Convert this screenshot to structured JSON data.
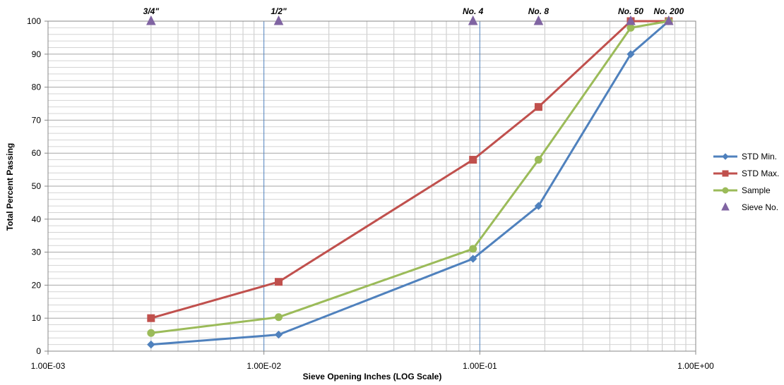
{
  "chart_data": {
    "type": "line",
    "title": "",
    "xlabel": "Sieve Opening Inches (LOG Scale)",
    "ylabel": "Total Percent Passing",
    "x_scale": "log",
    "xlim": [
      0.001,
      1
    ],
    "ylim": [
      0,
      100
    ],
    "x_ticks": [
      {
        "value": 0.001,
        "label": "1.00E-03"
      },
      {
        "value": 0.01,
        "label": "1.00E-02"
      },
      {
        "value": 0.1,
        "label": "1.00E-01"
      },
      {
        "value": 1,
        "label": "1.00E+00"
      }
    ],
    "y_ticks": [
      0,
      10,
      20,
      30,
      40,
      50,
      60,
      70,
      80,
      90,
      100
    ],
    "grid": true,
    "legend_position": "right",
    "series": [
      {
        "name": "STD Min.",
        "color": "#4f81bd",
        "marker": "diamond",
        "points": [
          {
            "x": 0.003,
            "y": 2
          },
          {
            "x": 0.0117,
            "y": 5
          },
          {
            "x": 0.093,
            "y": 28
          },
          {
            "x": 0.187,
            "y": 44
          },
          {
            "x": 0.5,
            "y": 90
          },
          {
            "x": 0.75,
            "y": 100
          }
        ]
      },
      {
        "name": "STD Max.",
        "color": "#c0504d",
        "marker": "square",
        "points": [
          {
            "x": 0.003,
            "y": 10
          },
          {
            "x": 0.0117,
            "y": 21
          },
          {
            "x": 0.093,
            "y": 58
          },
          {
            "x": 0.187,
            "y": 74
          },
          {
            "x": 0.5,
            "y": 100
          },
          {
            "x": 0.75,
            "y": 100
          }
        ]
      },
      {
        "name": "Sample",
        "color": "#9bbb59",
        "marker": "circle",
        "points": [
          {
            "x": 0.003,
            "y": 5.5
          },
          {
            "x": 0.0117,
            "y": 10.3
          },
          {
            "x": 0.093,
            "y": 31
          },
          {
            "x": 0.187,
            "y": 58
          },
          {
            "x": 0.5,
            "y": 98
          },
          {
            "x": 0.75,
            "y": 100
          }
        ]
      },
      {
        "name": "Sieve No.",
        "color": "#8064a2",
        "marker": "triangle",
        "line": false,
        "points": [
          {
            "x": 0.003,
            "y": 100,
            "label": "3/4\""
          },
          {
            "x": 0.0117,
            "y": 100,
            "label": "1/2\""
          },
          {
            "x": 0.093,
            "y": 100,
            "label": "No. 4"
          },
          {
            "x": 0.187,
            "y": 100,
            "label": "No. 8"
          },
          {
            "x": 0.5,
            "y": 100,
            "label": "No. 50"
          },
          {
            "x": 0.75,
            "y": 100,
            "label": "No. 200"
          }
        ]
      }
    ]
  }
}
